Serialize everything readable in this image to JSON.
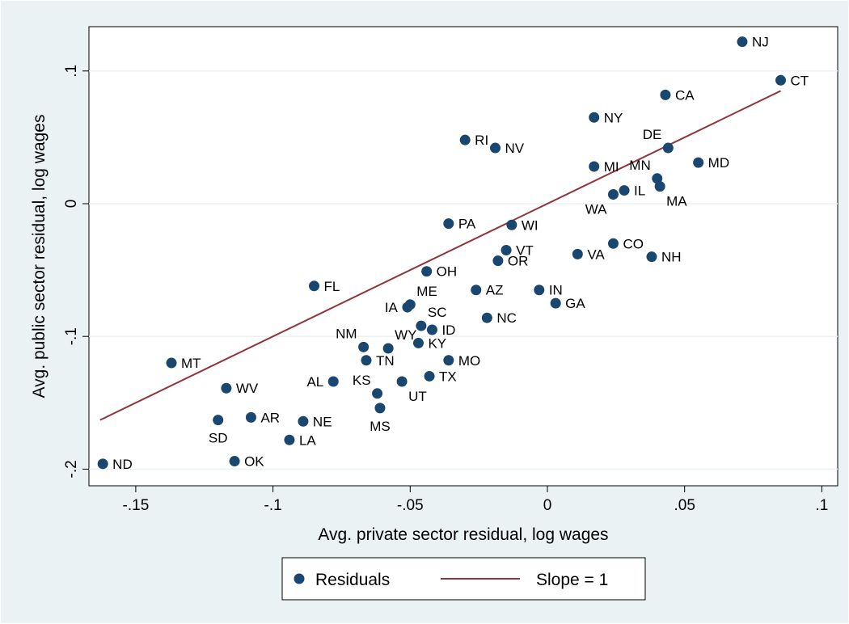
{
  "chart_data": {
    "type": "scatter",
    "title": "",
    "xlabel": "Avg. private sector residual, log wages",
    "ylabel": "Avg. public sector residual, log wages",
    "xlim": [
      -0.165,
      0.1
    ],
    "ylim": [
      -0.2,
      0.13
    ],
    "grid": true,
    "legend_position": "bottom",
    "x_ticks": [
      {
        "value": -0.15,
        "label": "-.15"
      },
      {
        "value": -0.1,
        "label": "-.1"
      },
      {
        "value": -0.05,
        "label": "-.05"
      },
      {
        "value": 0,
        "label": "0"
      },
      {
        "value": 0.05,
        "label": ".05"
      },
      {
        "value": 0.1,
        "label": ".1"
      }
    ],
    "y_ticks": [
      {
        "value": 0.1,
        "label": ".1"
      },
      {
        "value": 0,
        "label": "0"
      },
      {
        "value": -0.1,
        "label": "-.1"
      },
      {
        "value": -0.2,
        "label": "-.2"
      }
    ],
    "colors": {
      "points": "#1a476f",
      "line": "#90353b",
      "grid": "#eaf2f3",
      "background": "#eaf2f3",
      "plot": "#ffffff"
    },
    "series": [
      {
        "name": "Residuals",
        "kind": "scatter",
        "points": [
          {
            "label": "NJ",
            "x": 0.071,
            "y": 0.122,
            "pos": "right"
          },
          {
            "label": "CT",
            "x": 0.085,
            "y": 0.093,
            "pos": "right"
          },
          {
            "label": "CA",
            "x": 0.043,
            "y": 0.082,
            "pos": "right"
          },
          {
            "label": "NY",
            "x": 0.017,
            "y": 0.065,
            "pos": "right"
          },
          {
            "label": "RI",
            "x": -0.03,
            "y": 0.048,
            "pos": "right"
          },
          {
            "label": "NV",
            "x": -0.019,
            "y": 0.042,
            "pos": "right"
          },
          {
            "label": "DE",
            "x": 0.044,
            "y": 0.042,
            "pos": "above-left"
          },
          {
            "label": "MD",
            "x": 0.055,
            "y": 0.031,
            "pos": "right"
          },
          {
            "label": "MI",
            "x": 0.017,
            "y": 0.028,
            "pos": "right"
          },
          {
            "label": "MN",
            "x": 0.04,
            "y": 0.019,
            "pos": "above-left"
          },
          {
            "label": "MA",
            "x": 0.041,
            "y": 0.013,
            "pos": "below-right"
          },
          {
            "label": "IL",
            "x": 0.028,
            "y": 0.01,
            "pos": "right"
          },
          {
            "label": "WA",
            "x": 0.024,
            "y": 0.007,
            "pos": "below-left"
          },
          {
            "label": "PA",
            "x": -0.036,
            "y": -0.015,
            "pos": "right"
          },
          {
            "label": "WI",
            "x": -0.013,
            "y": -0.016,
            "pos": "right"
          },
          {
            "label": "CO",
            "x": 0.024,
            "y": -0.03,
            "pos": "right"
          },
          {
            "label": "VT",
            "x": -0.015,
            "y": -0.035,
            "pos": "right"
          },
          {
            "label": "VA",
            "x": 0.011,
            "y": -0.038,
            "pos": "right"
          },
          {
            "label": "NH",
            "x": 0.038,
            "y": -0.04,
            "pos": "right"
          },
          {
            "label": "OR",
            "x": -0.018,
            "y": -0.043,
            "pos": "right"
          },
          {
            "label": "OH",
            "x": -0.044,
            "y": -0.051,
            "pos": "right"
          },
          {
            "label": "FL",
            "x": -0.085,
            "y": -0.062,
            "pos": "right"
          },
          {
            "label": "AZ",
            "x": -0.026,
            "y": -0.065,
            "pos": "right"
          },
          {
            "label": "IN",
            "x": -0.003,
            "y": -0.065,
            "pos": "right"
          },
          {
            "label": "GA",
            "x": 0.003,
            "y": -0.075,
            "pos": "right"
          },
          {
            "label": "ME",
            "x": -0.05,
            "y": -0.076,
            "pos": "above-right"
          },
          {
            "label": "IA",
            "x": -0.051,
            "y": -0.078,
            "pos": "left"
          },
          {
            "label": "NC",
            "x": -0.022,
            "y": -0.086,
            "pos": "right"
          },
          {
            "label": "SC",
            "x": -0.046,
            "y": -0.092,
            "pos": "above-right"
          },
          {
            "label": "ID",
            "x": -0.042,
            "y": -0.095,
            "pos": "right"
          },
          {
            "label": "KY",
            "x": -0.047,
            "y": -0.105,
            "pos": "right"
          },
          {
            "label": "NM",
            "x": -0.067,
            "y": -0.108,
            "pos": "above-left"
          },
          {
            "label": "WY",
            "x": -0.058,
            "y": -0.109,
            "pos": "above-right"
          },
          {
            "label": "MT",
            "x": -0.137,
            "y": -0.12,
            "pos": "right"
          },
          {
            "label": "TN",
            "x": -0.066,
            "y": -0.118,
            "pos": "right"
          },
          {
            "label": "MO",
            "x": -0.036,
            "y": -0.118,
            "pos": "right"
          },
          {
            "label": "TX",
            "x": -0.043,
            "y": -0.13,
            "pos": "right"
          },
          {
            "label": "AL",
            "x": -0.078,
            "y": -0.134,
            "pos": "left"
          },
          {
            "label": "KS",
            "x": -0.062,
            "y": -0.143,
            "pos": "above-left"
          },
          {
            "label": "UT",
            "x": -0.053,
            "y": -0.134,
            "pos": "below-right"
          },
          {
            "label": "WV",
            "x": -0.117,
            "y": -0.139,
            "pos": "right"
          },
          {
            "label": "MS",
            "x": -0.061,
            "y": -0.154,
            "pos": "below"
          },
          {
            "label": "AR",
            "x": -0.108,
            "y": -0.161,
            "pos": "right"
          },
          {
            "label": "NE",
            "x": -0.089,
            "y": -0.164,
            "pos": "right"
          },
          {
            "label": "SD",
            "x": -0.12,
            "y": -0.163,
            "pos": "below"
          },
          {
            "label": "LA",
            "x": -0.094,
            "y": -0.178,
            "pos": "right"
          },
          {
            "label": "OK",
            "x": -0.114,
            "y": -0.194,
            "pos": "right"
          },
          {
            "label": "ND",
            "x": -0.162,
            "y": -0.196,
            "pos": "right"
          }
        ]
      },
      {
        "name": "Slope = 1",
        "kind": "line",
        "points": [
          {
            "x": -0.163,
            "y": -0.163
          },
          {
            "x": 0.085,
            "y": 0.085
          }
        ]
      }
    ]
  }
}
